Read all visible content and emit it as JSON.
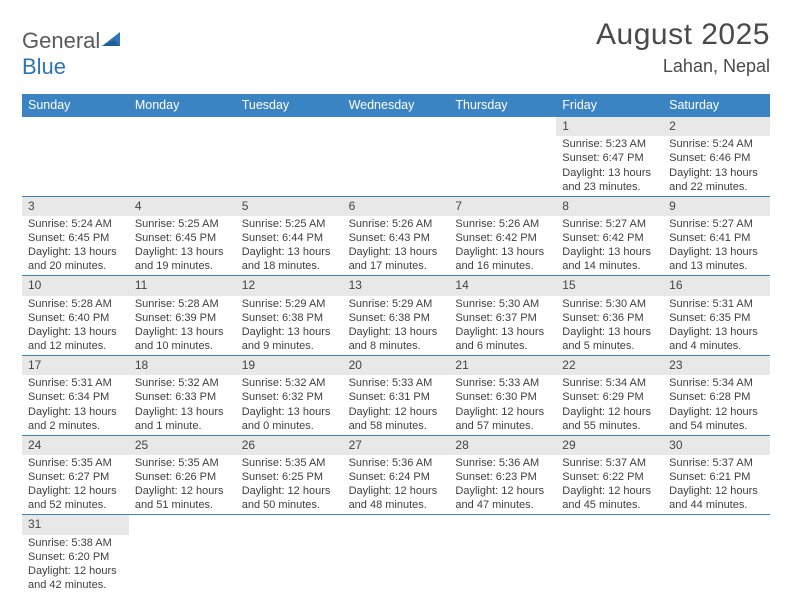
{
  "logo": {
    "text_a": "General",
    "text_b": "Blue"
  },
  "title": "August 2025",
  "location": "Lahan, Nepal",
  "colors": {
    "header_bg": "#3b84c4",
    "header_text": "#ffffff",
    "row_divider": "#3b84c4",
    "daynum_bg": "#e8e8e8",
    "body_text": "#3f3f3f",
    "logo_gray": "#5a5a5a",
    "logo_blue": "#2f74b5",
    "title_color": "#4a4a4a"
  },
  "day_names": [
    "Sunday",
    "Monday",
    "Tuesday",
    "Wednesday",
    "Thursday",
    "Friday",
    "Saturday"
  ],
  "weeks": [
    [
      {
        "empty": true
      },
      {
        "empty": true
      },
      {
        "empty": true
      },
      {
        "empty": true
      },
      {
        "empty": true
      },
      {
        "day": "1",
        "sunrise": "5:23 AM",
        "sunset": "6:47 PM",
        "daylight": "13 hours and 23 minutes."
      },
      {
        "day": "2",
        "sunrise": "5:24 AM",
        "sunset": "6:46 PM",
        "daylight": "13 hours and 22 minutes."
      }
    ],
    [
      {
        "day": "3",
        "sunrise": "5:24 AM",
        "sunset": "6:45 PM",
        "daylight": "13 hours and 20 minutes."
      },
      {
        "day": "4",
        "sunrise": "5:25 AM",
        "sunset": "6:45 PM",
        "daylight": "13 hours and 19 minutes."
      },
      {
        "day": "5",
        "sunrise": "5:25 AM",
        "sunset": "6:44 PM",
        "daylight": "13 hours and 18 minutes."
      },
      {
        "day": "6",
        "sunrise": "5:26 AM",
        "sunset": "6:43 PM",
        "daylight": "13 hours and 17 minutes."
      },
      {
        "day": "7",
        "sunrise": "5:26 AM",
        "sunset": "6:42 PM",
        "daylight": "13 hours and 16 minutes."
      },
      {
        "day": "8",
        "sunrise": "5:27 AM",
        "sunset": "6:42 PM",
        "daylight": "13 hours and 14 minutes."
      },
      {
        "day": "9",
        "sunrise": "5:27 AM",
        "sunset": "6:41 PM",
        "daylight": "13 hours and 13 minutes."
      }
    ],
    [
      {
        "day": "10",
        "sunrise": "5:28 AM",
        "sunset": "6:40 PM",
        "daylight": "13 hours and 12 minutes."
      },
      {
        "day": "11",
        "sunrise": "5:28 AM",
        "sunset": "6:39 PM",
        "daylight": "13 hours and 10 minutes."
      },
      {
        "day": "12",
        "sunrise": "5:29 AM",
        "sunset": "6:38 PM",
        "daylight": "13 hours and 9 minutes."
      },
      {
        "day": "13",
        "sunrise": "5:29 AM",
        "sunset": "6:38 PM",
        "daylight": "13 hours and 8 minutes."
      },
      {
        "day": "14",
        "sunrise": "5:30 AM",
        "sunset": "6:37 PM",
        "daylight": "13 hours and 6 minutes."
      },
      {
        "day": "15",
        "sunrise": "5:30 AM",
        "sunset": "6:36 PM",
        "daylight": "13 hours and 5 minutes."
      },
      {
        "day": "16",
        "sunrise": "5:31 AM",
        "sunset": "6:35 PM",
        "daylight": "13 hours and 4 minutes."
      }
    ],
    [
      {
        "day": "17",
        "sunrise": "5:31 AM",
        "sunset": "6:34 PM",
        "daylight": "13 hours and 2 minutes."
      },
      {
        "day": "18",
        "sunrise": "5:32 AM",
        "sunset": "6:33 PM",
        "daylight": "13 hours and 1 minute."
      },
      {
        "day": "19",
        "sunrise": "5:32 AM",
        "sunset": "6:32 PM",
        "daylight": "13 hours and 0 minutes."
      },
      {
        "day": "20",
        "sunrise": "5:33 AM",
        "sunset": "6:31 PM",
        "daylight": "12 hours and 58 minutes."
      },
      {
        "day": "21",
        "sunrise": "5:33 AM",
        "sunset": "6:30 PM",
        "daylight": "12 hours and 57 minutes."
      },
      {
        "day": "22",
        "sunrise": "5:34 AM",
        "sunset": "6:29 PM",
        "daylight": "12 hours and 55 minutes."
      },
      {
        "day": "23",
        "sunrise": "5:34 AM",
        "sunset": "6:28 PM",
        "daylight": "12 hours and 54 minutes."
      }
    ],
    [
      {
        "day": "24",
        "sunrise": "5:35 AM",
        "sunset": "6:27 PM",
        "daylight": "12 hours and 52 minutes."
      },
      {
        "day": "25",
        "sunrise": "5:35 AM",
        "sunset": "6:26 PM",
        "daylight": "12 hours and 51 minutes."
      },
      {
        "day": "26",
        "sunrise": "5:35 AM",
        "sunset": "6:25 PM",
        "daylight": "12 hours and 50 minutes."
      },
      {
        "day": "27",
        "sunrise": "5:36 AM",
        "sunset": "6:24 PM",
        "daylight": "12 hours and 48 minutes."
      },
      {
        "day": "28",
        "sunrise": "5:36 AM",
        "sunset": "6:23 PM",
        "daylight": "12 hours and 47 minutes."
      },
      {
        "day": "29",
        "sunrise": "5:37 AM",
        "sunset": "6:22 PM",
        "daylight": "12 hours and 45 minutes."
      },
      {
        "day": "30",
        "sunrise": "5:37 AM",
        "sunset": "6:21 PM",
        "daylight": "12 hours and 44 minutes."
      }
    ],
    [
      {
        "day": "31",
        "sunrise": "5:38 AM",
        "sunset": "6:20 PM",
        "daylight": "12 hours and 42 minutes."
      },
      {
        "empty": true
      },
      {
        "empty": true
      },
      {
        "empty": true
      },
      {
        "empty": true
      },
      {
        "empty": true
      },
      {
        "empty": true
      }
    ]
  ],
  "labels": {
    "sunrise_prefix": "Sunrise: ",
    "sunset_prefix": "Sunset: ",
    "daylight_prefix": "Daylight: "
  }
}
